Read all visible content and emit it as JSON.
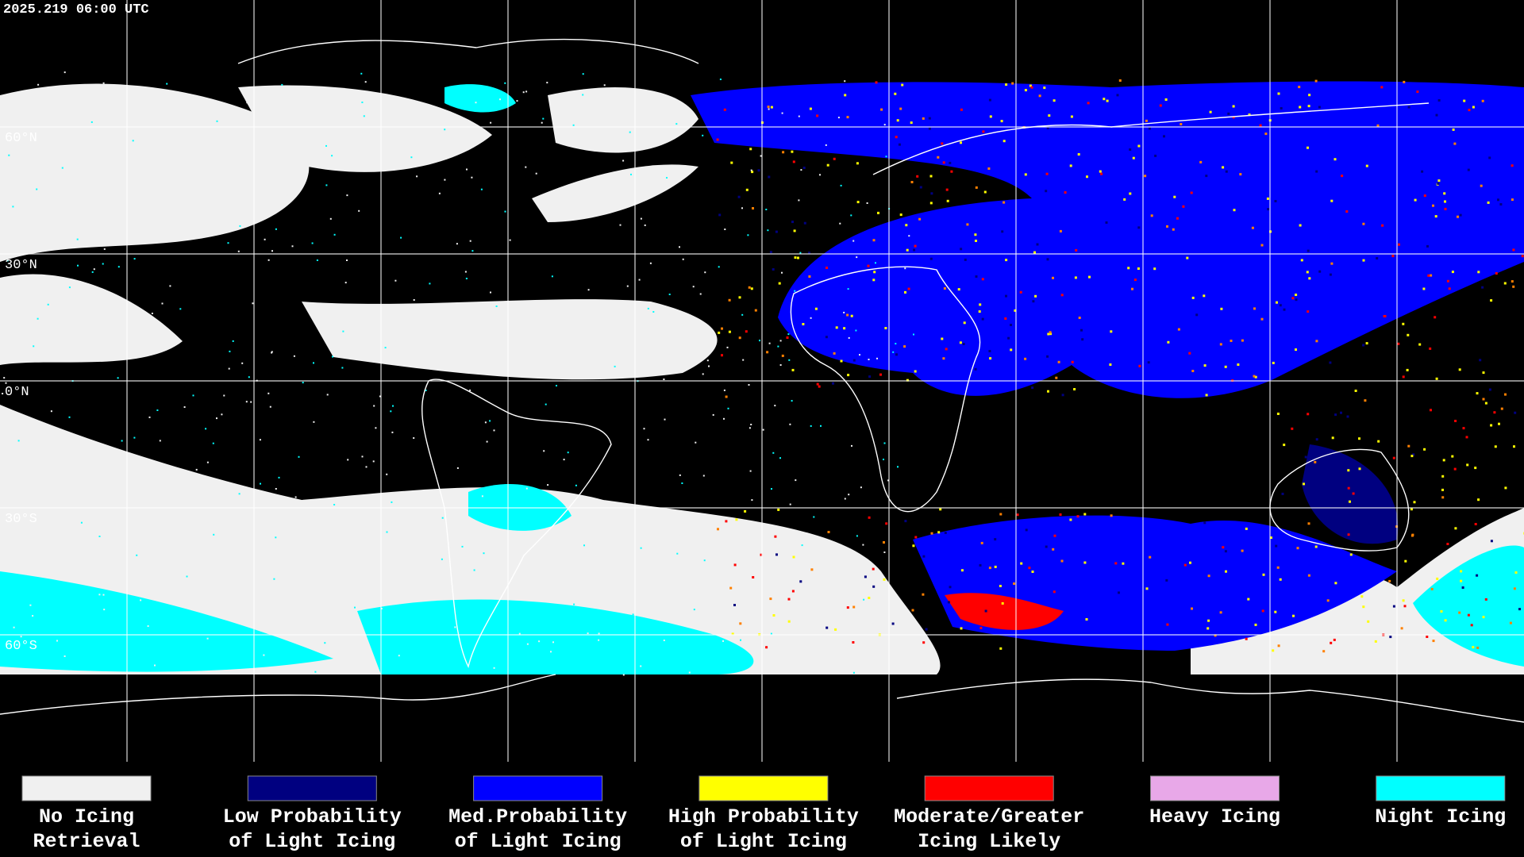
{
  "header": {
    "timestamp": "2025.219 06:00 UTC"
  },
  "map": {
    "lat_labels": [
      "60°N",
      "30°N",
      "0°N",
      "30°S",
      "60°S"
    ]
  },
  "legend": {
    "items": [
      {
        "lines": [
          "No Icing",
          "Retrieval"
        ],
        "color": "#f0f0f0"
      },
      {
        "lines": [
          "Low Probability",
          "of Light Icing"
        ],
        "color": "#000080"
      },
      {
        "lines": [
          "Med.Probability",
          "of Light Icing"
        ],
        "color": "#0000ff"
      },
      {
        "lines": [
          "High Probability",
          "of Light Icing"
        ],
        "color": "#ffff00"
      },
      {
        "lines": [
          "Moderate/Greater",
          "Icing Likely"
        ],
        "color": "#ff0000"
      },
      {
        "lines": [
          "Heavy Icing"
        ],
        "color": "#e8a8e8"
      },
      {
        "lines": [
          "Night Icing"
        ],
        "color": "#00ffff"
      }
    ]
  }
}
